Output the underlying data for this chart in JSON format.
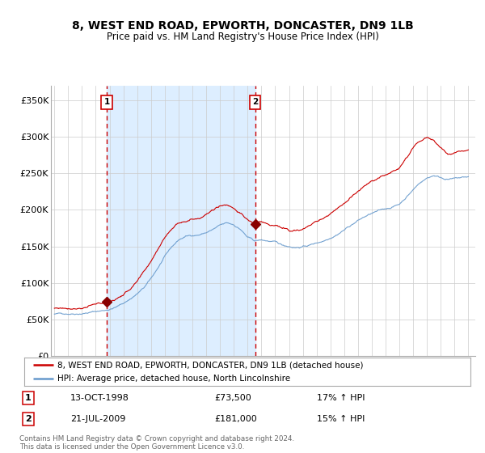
{
  "title": "8, WEST END ROAD, EPWORTH, DONCASTER, DN9 1LB",
  "subtitle": "Price paid vs. HM Land Registry's House Price Index (HPI)",
  "legend_line1": "8, WEST END ROAD, EPWORTH, DONCASTER, DN9 1LB (detached house)",
  "legend_line2": "HPI: Average price, detached house, North Lincolnshire",
  "purchase1_date": "13-OCT-1998",
  "purchase1_price": 73500,
  "purchase1_pct": "17% ↑ HPI",
  "purchase2_date": "21-JUL-2009",
  "purchase2_price": 181000,
  "purchase2_pct": "15% ↑ HPI",
  "footer": "Contains HM Land Registry data © Crown copyright and database right 2024.\nThis data is licensed under the Open Government Licence v3.0.",
  "red_color": "#cc0000",
  "blue_color": "#6699cc",
  "bg_shade": "#ddeeff",
  "ylim": [
    0,
    370000
  ],
  "yticks": [
    0,
    50000,
    100000,
    150000,
    200000,
    250000,
    300000,
    350000
  ],
  "ytick_labels": [
    "£0",
    "£50K",
    "£100K",
    "£150K",
    "£200K",
    "£250K",
    "£300K",
    "£350K"
  ],
  "xstart": 1995.0,
  "xend": 2025.5,
  "purchase1_x": 1998.79,
  "purchase2_x": 2009.55,
  "xticks": [
    1995,
    1996,
    1997,
    1998,
    1999,
    2000,
    2001,
    2002,
    2003,
    2004,
    2005,
    2006,
    2007,
    2008,
    2009,
    2010,
    2011,
    2012,
    2013,
    2014,
    2015,
    2016,
    2017,
    2018,
    2019,
    2020,
    2021,
    2022,
    2023,
    2024,
    2025
  ],
  "hpi_waypoints": [
    [
      1995.0,
      57000
    ],
    [
      1995.5,
      57500
    ],
    [
      1996.0,
      58000
    ],
    [
      1996.5,
      58500
    ],
    [
      1997.0,
      59000
    ],
    [
      1997.5,
      60000
    ],
    [
      1998.0,
      61000
    ],
    [
      1998.5,
      62000
    ],
    [
      1999.0,
      64000
    ],
    [
      1999.5,
      67000
    ],
    [
      2000.0,
      72000
    ],
    [
      2000.5,
      78000
    ],
    [
      2001.0,
      85000
    ],
    [
      2001.5,
      93000
    ],
    [
      2002.0,
      105000
    ],
    [
      2002.5,
      120000
    ],
    [
      2003.0,
      135000
    ],
    [
      2003.5,
      148000
    ],
    [
      2004.0,
      158000
    ],
    [
      2004.5,
      163000
    ],
    [
      2005.0,
      165000
    ],
    [
      2005.5,
      166000
    ],
    [
      2006.0,
      169000
    ],
    [
      2006.5,
      173000
    ],
    [
      2007.0,
      178000
    ],
    [
      2007.5,
      181000
    ],
    [
      2008.0,
      179000
    ],
    [
      2008.5,
      173000
    ],
    [
      2009.0,
      162000
    ],
    [
      2009.5,
      157000
    ],
    [
      2010.0,
      158000
    ],
    [
      2010.5,
      157000
    ],
    [
      2011.0,
      155000
    ],
    [
      2011.5,
      151000
    ],
    [
      2012.0,
      150000
    ],
    [
      2012.5,
      149000
    ],
    [
      2013.0,
      150000
    ],
    [
      2013.5,
      152000
    ],
    [
      2014.0,
      155000
    ],
    [
      2014.5,
      158000
    ],
    [
      2015.0,
      163000
    ],
    [
      2015.5,
      168000
    ],
    [
      2016.0,
      174000
    ],
    [
      2016.5,
      180000
    ],
    [
      2017.0,
      186000
    ],
    [
      2017.5,
      191000
    ],
    [
      2018.0,
      195000
    ],
    [
      2018.5,
      198000
    ],
    [
      2019.0,
      201000
    ],
    [
      2019.5,
      204000
    ],
    [
      2020.0,
      208000
    ],
    [
      2020.5,
      218000
    ],
    [
      2021.0,
      228000
    ],
    [
      2021.5,
      238000
    ],
    [
      2022.0,
      244000
    ],
    [
      2022.5,
      248000
    ],
    [
      2023.0,
      245000
    ],
    [
      2023.5,
      243000
    ],
    [
      2024.0,
      243000
    ],
    [
      2024.5,
      244000
    ],
    [
      2025.0,
      245000
    ]
  ],
  "red_waypoints": [
    [
      1995.0,
      65000
    ],
    [
      1995.5,
      65500
    ],
    [
      1996.0,
      66000
    ],
    [
      1996.5,
      66500
    ],
    [
      1997.0,
      67000
    ],
    [
      1997.5,
      68500
    ],
    [
      1998.0,
      70000
    ],
    [
      1998.5,
      71500
    ],
    [
      1999.0,
      74000
    ],
    [
      1999.5,
      78000
    ],
    [
      2000.0,
      84000
    ],
    [
      2000.5,
      92000
    ],
    [
      2001.0,
      101000
    ],
    [
      2001.5,
      113000
    ],
    [
      2002.0,
      128000
    ],
    [
      2002.5,
      147000
    ],
    [
      2003.0,
      163000
    ],
    [
      2003.5,
      175000
    ],
    [
      2004.0,
      183000
    ],
    [
      2004.5,
      187000
    ],
    [
      2005.0,
      189000
    ],
    [
      2005.5,
      191000
    ],
    [
      2006.0,
      196000
    ],
    [
      2006.5,
      200000
    ],
    [
      2007.0,
      207000
    ],
    [
      2007.5,
      208000
    ],
    [
      2008.0,
      204000
    ],
    [
      2008.5,
      196000
    ],
    [
      2009.0,
      186000
    ],
    [
      2009.5,
      181000
    ],
    [
      2010.0,
      183000
    ],
    [
      2010.5,
      180000
    ],
    [
      2011.0,
      178000
    ],
    [
      2011.5,
      174000
    ],
    [
      2012.0,
      172000
    ],
    [
      2012.5,
      172000
    ],
    [
      2013.0,
      174000
    ],
    [
      2013.5,
      178000
    ],
    [
      2014.0,
      183000
    ],
    [
      2014.5,
      188000
    ],
    [
      2015.0,
      195000
    ],
    [
      2015.5,
      202000
    ],
    [
      2016.0,
      210000
    ],
    [
      2016.5,
      218000
    ],
    [
      2017.0,
      226000
    ],
    [
      2017.5,
      232000
    ],
    [
      2018.0,
      238000
    ],
    [
      2018.5,
      243000
    ],
    [
      2019.0,
      247000
    ],
    [
      2019.5,
      252000
    ],
    [
      2020.0,
      258000
    ],
    [
      2020.5,
      272000
    ],
    [
      2021.0,
      285000
    ],
    [
      2021.5,
      295000
    ],
    [
      2022.0,
      300000
    ],
    [
      2022.5,
      295000
    ],
    [
      2023.0,
      285000
    ],
    [
      2023.5,
      278000
    ],
    [
      2024.0,
      277000
    ],
    [
      2024.5,
      278000
    ],
    [
      2025.0,
      280000
    ]
  ]
}
